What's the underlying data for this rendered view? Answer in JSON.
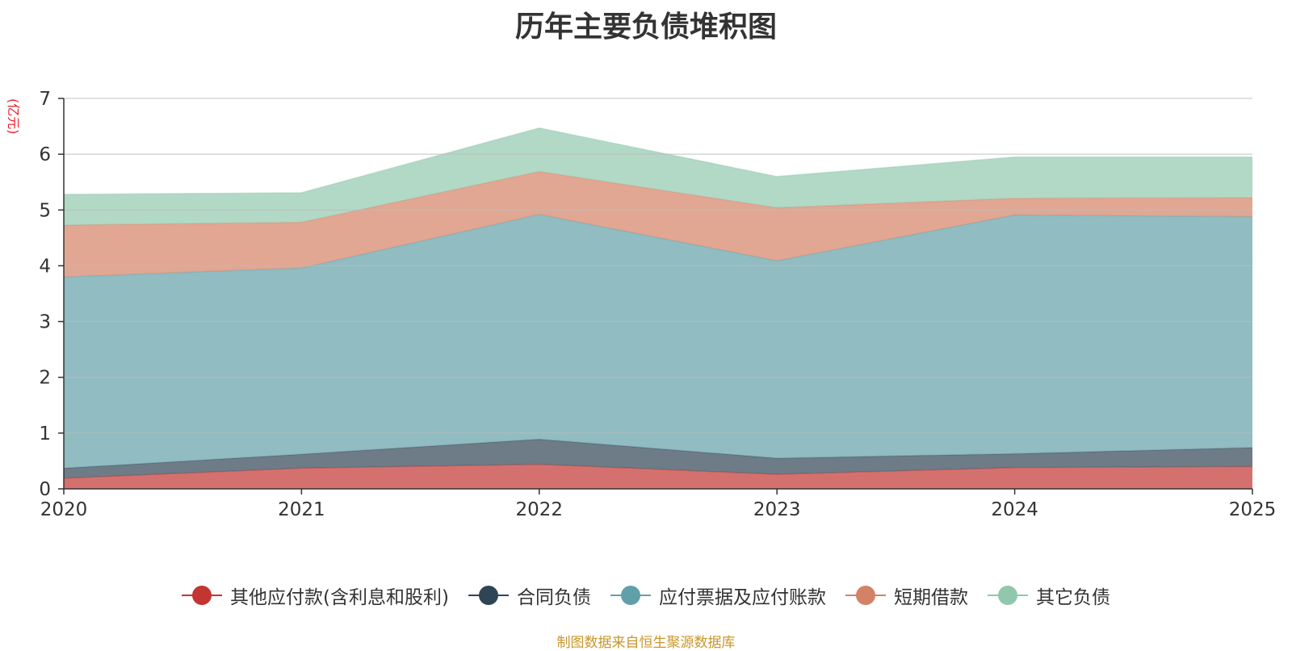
{
  "title": "历年主要负债堆积图",
  "unit_label": "(亿元)",
  "source": "制图数据来自恒生聚源数据库",
  "chart_data": {
    "type": "area",
    "stacked": true,
    "title": "历年主要负债堆积图",
    "ylabel": "(亿元)",
    "xlabel": "",
    "categories": [
      "2020",
      "2021",
      "2022",
      "2023",
      "2024",
      "2025"
    ],
    "ylim": [
      0,
      7
    ],
    "yticks": [
      0,
      1,
      2,
      3,
      4,
      5,
      6,
      7
    ],
    "grid": true,
    "legend_position": "bottom",
    "series": [
      {
        "name": "其他应付款(含利息和股利)",
        "color": "#c23531",
        "values": [
          0.19,
          0.37,
          0.44,
          0.26,
          0.38,
          0.4
        ]
      },
      {
        "name": "合同负债",
        "color": "#2f4554",
        "values": [
          0.18,
          0.25,
          0.45,
          0.29,
          0.25,
          0.34
        ]
      },
      {
        "name": "应付票据及应付账款",
        "color": "#61a0a8",
        "values": [
          3.43,
          3.34,
          4.03,
          3.54,
          4.28,
          4.14
        ]
      },
      {
        "name": "短期借款",
        "color": "#d48265",
        "values": [
          0.93,
          0.82,
          0.77,
          0.95,
          0.3,
          0.34
        ]
      },
      {
        "name": "其它负债",
        "color": "#91c7ae",
        "values": [
          0.55,
          0.53,
          0.78,
          0.56,
          0.74,
          0.73
        ]
      }
    ]
  }
}
